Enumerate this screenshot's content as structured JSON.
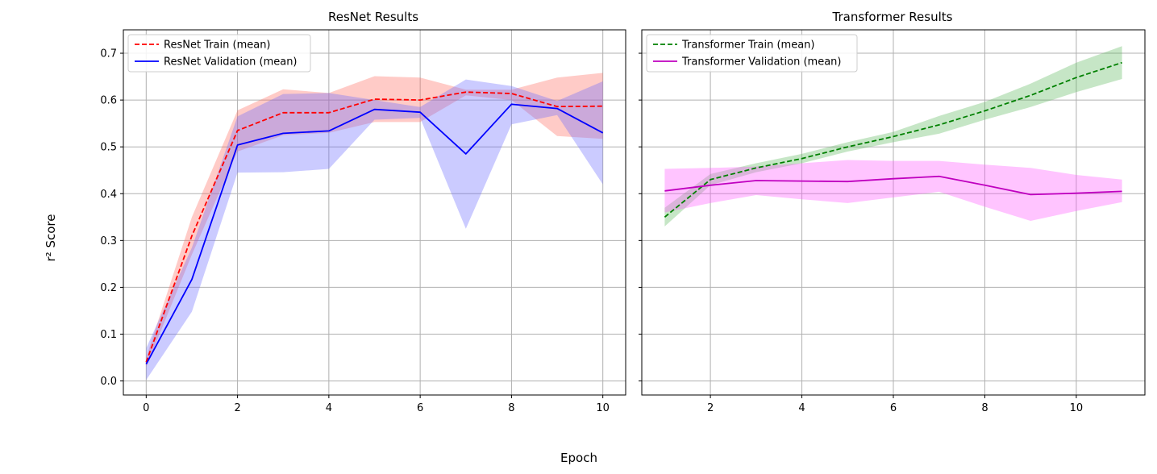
{
  "figure": {
    "xlabel": "Epoch",
    "ylabel": "r² Score"
  },
  "chart_data": [
    {
      "type": "line",
      "title": "ResNet Results",
      "xlim": [
        -0.5,
        10.5
      ],
      "ylim": [
        -0.03,
        0.75
      ],
      "xticks": [
        0,
        2,
        4,
        6,
        8,
        10
      ],
      "yticks": [
        0.0,
        0.1,
        0.2,
        0.3,
        0.4,
        0.5,
        0.6,
        0.7
      ],
      "grid": true,
      "legend_position": "top-left",
      "series": [
        {
          "name": "ResNet Train (mean)",
          "color": "#ff0000",
          "band_color": "#ff6a5e",
          "dashed": true,
          "x": [
            0,
            1,
            2,
            3,
            4,
            5,
            6,
            7,
            8,
            9,
            10
          ],
          "values": [
            0.04,
            0.31,
            0.535,
            0.573,
            0.573,
            0.602,
            0.6,
            0.617,
            0.614,
            0.586,
            0.587
          ],
          "lower": [
            0.03,
            0.27,
            0.49,
            0.525,
            0.53,
            0.553,
            0.553,
            0.61,
            0.6,
            0.523,
            0.517
          ],
          "upper": [
            0.05,
            0.35,
            0.578,
            0.623,
            0.615,
            0.651,
            0.648,
            0.622,
            0.622,
            0.648,
            0.658
          ]
        },
        {
          "name": "ResNet Validation (mean)",
          "color": "#0000ff",
          "band_color": "#6b6bff",
          "dashed": false,
          "x": [
            0,
            1,
            2,
            3,
            4,
            5,
            6,
            7,
            8,
            9,
            10
          ],
          "values": [
            0.036,
            0.217,
            0.504,
            0.529,
            0.534,
            0.58,
            0.574,
            0.485,
            0.591,
            0.582,
            0.53
          ],
          "lower": [
            0.002,
            0.148,
            0.445,
            0.446,
            0.453,
            0.558,
            0.562,
            0.325,
            0.548,
            0.568,
            0.42
          ],
          "upper": [
            0.07,
            0.285,
            0.565,
            0.613,
            0.615,
            0.6,
            0.585,
            0.644,
            0.63,
            0.598,
            0.64
          ]
        }
      ]
    },
    {
      "type": "line",
      "title": "Transformer Results",
      "xlim": [
        0.5,
        11.5
      ],
      "ylim": [
        -0.03,
        0.75
      ],
      "xticks": [
        2,
        4,
        6,
        8,
        10
      ],
      "yticks": [
        0.0,
        0.1,
        0.2,
        0.3,
        0.4,
        0.5,
        0.6,
        0.7
      ],
      "grid": true,
      "legend_position": "top-left",
      "series": [
        {
          "name": "Transformer Train (mean)",
          "color": "#008000",
          "band_color": "#5cb85c",
          "dashed": true,
          "x": [
            1,
            2,
            3,
            4,
            5,
            6,
            7,
            8,
            9,
            10,
            11
          ],
          "values": [
            0.35,
            0.43,
            0.455,
            0.475,
            0.5,
            0.522,
            0.547,
            0.577,
            0.61,
            0.648,
            0.68
          ],
          "lower": [
            0.33,
            0.418,
            0.446,
            0.465,
            0.49,
            0.51,
            0.528,
            0.558,
            0.585,
            0.617,
            0.645
          ],
          "upper": [
            0.37,
            0.442,
            0.465,
            0.485,
            0.51,
            0.532,
            0.566,
            0.596,
            0.635,
            0.68,
            0.715
          ]
        },
        {
          "name": "Transformer Validation (mean)",
          "color": "#bf00bf",
          "band_color": "#ff55ff",
          "dashed": false,
          "x": [
            1,
            2,
            3,
            4,
            5,
            6,
            7,
            8,
            9,
            10,
            11
          ],
          "values": [
            0.406,
            0.418,
            0.428,
            0.427,
            0.426,
            0.432,
            0.437,
            0.418,
            0.398,
            0.401,
            0.405
          ],
          "lower": [
            0.36,
            0.38,
            0.397,
            0.388,
            0.38,
            0.392,
            0.404,
            0.372,
            0.342,
            0.363,
            0.382
          ],
          "upper": [
            0.453,
            0.455,
            0.458,
            0.465,
            0.472,
            0.47,
            0.47,
            0.462,
            0.455,
            0.44,
            0.43
          ]
        }
      ]
    }
  ]
}
